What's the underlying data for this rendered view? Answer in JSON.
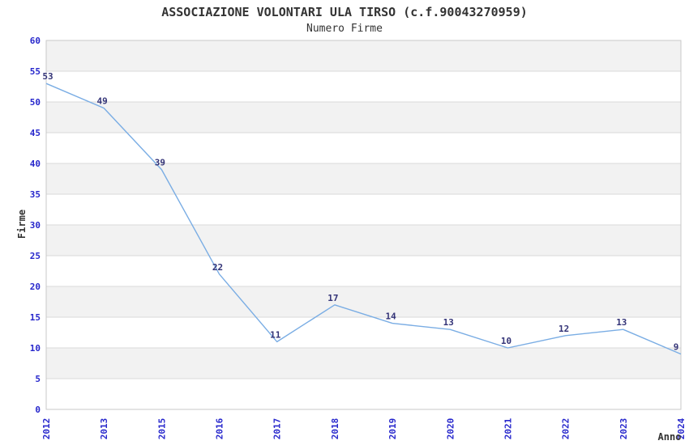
{
  "chart_data": {
    "type": "line",
    "title": "ASSOCIAZIONE VOLONTARI ULA TIRSO (c.f.90043270959)",
    "subtitle": "Numero Firme",
    "xlabel": "Anno",
    "ylabel": "Firme",
    "categories": [
      "2012",
      "2013",
      "2015",
      "2016",
      "2017",
      "2018",
      "2019",
      "2020",
      "2021",
      "2022",
      "2023",
      "2024"
    ],
    "values": [
      53,
      49,
      39,
      22,
      11,
      17,
      14,
      13,
      10,
      12,
      13,
      9
    ],
    "ylim": [
      0,
      60
    ],
    "ytick_step": 5,
    "yticks": [
      0,
      5,
      10,
      15,
      20,
      25,
      30,
      35,
      40,
      45,
      50,
      55,
      60
    ],
    "grid": true,
    "legend_position": "none",
    "band_pattern": "alternating gray/white horizontal bands, gray topmost",
    "colors": {
      "line": "#7aade4",
      "axis_tick_labels": "#2727cc",
      "data_labels": "#333377",
      "band_gray": "#f2f2f2",
      "band_white": "#ffffff",
      "gridline": "#d9d9d9",
      "plot_border": "#c9c9c9",
      "title_text": "#333333"
    }
  }
}
